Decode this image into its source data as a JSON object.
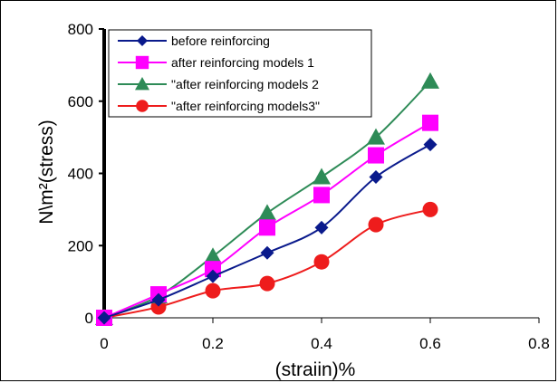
{
  "chart_data": {
    "type": "line",
    "title": "",
    "xlabel": "(straiin)%",
    "ylabel": "N\\m²(stress)",
    "xlim": [
      0,
      0.8
    ],
    "ylim": [
      0,
      800
    ],
    "x_ticks": [
      "0",
      "0.2",
      "0.4",
      "0.6",
      "0.8"
    ],
    "y_ticks": [
      "0",
      "200",
      "400",
      "600",
      "800"
    ],
    "grid": false,
    "legend_position": "top-left",
    "series": [
      {
        "name": "before reinforcing",
        "color": "#0a1a8c",
        "marker": "diamond",
        "x": [
          0,
          0.1,
          0.2,
          0.3,
          0.4,
          0.5,
          0.6
        ],
        "y": [
          0,
          50,
          115,
          180,
          250,
          390,
          480
        ]
      },
      {
        "name": "after reinforcing models 1",
        "color": "#ff00ff",
        "marker": "square",
        "x": [
          0,
          0.1,
          0.2,
          0.3,
          0.4,
          0.5,
          0.6
        ],
        "y": [
          0,
          65,
          135,
          250,
          340,
          450,
          540
        ]
      },
      {
        "name": "\"after reinforcing models 2",
        "color": "#2e8b57",
        "marker": "triangle",
        "x": [
          0,
          0.1,
          0.2,
          0.3,
          0.4,
          0.5,
          0.6
        ],
        "y": [
          0,
          60,
          170,
          290,
          390,
          500,
          655
        ]
      },
      {
        "name": "\"after reinforcing models3\"",
        "color": "#ee1c1c",
        "marker": "circle",
        "x": [
          0,
          0.1,
          0.2,
          0.3,
          0.4,
          0.5,
          0.6
        ],
        "y": [
          0,
          30,
          75,
          95,
          155,
          258,
          300
        ]
      }
    ]
  }
}
